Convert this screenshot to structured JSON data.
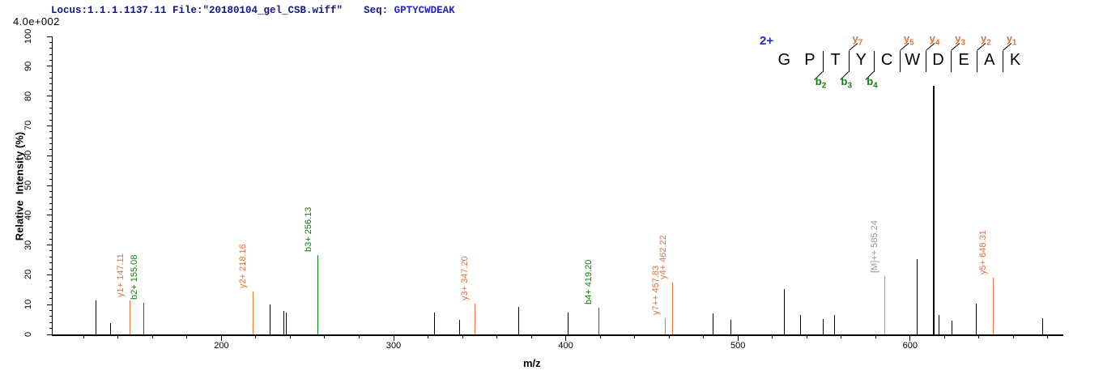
{
  "header": {
    "locus_file": "Locus:1.1.1.1137.11 File:\"20180104_gel_CSB.wiff\"",
    "seq_label": "Seq:",
    "seq_value": "GPTYCWDEAK",
    "intensity_scale": "4.0e+002"
  },
  "axes": {
    "x_label": "m/z",
    "y_label": "Relative  Intensity (%)",
    "x_major_ticks": [
      200,
      300,
      400,
      500,
      600
    ],
    "x_minor_step": 20,
    "x_range": [
      101.5,
      689
    ],
    "y_major_ticks": [
      0,
      10,
      20,
      30,
      40,
      50,
      60,
      70,
      80,
      90,
      100
    ],
    "y_minor_step": 2,
    "y_range": [
      0,
      100
    ]
  },
  "annotation": {
    "precursor_charge": "2+",
    "residues": [
      "G",
      "P",
      "T",
      "Y",
      "C",
      "W",
      "D",
      "E",
      "A",
      "K"
    ],
    "y_ions": [
      {
        "name": "y",
        "num": "7",
        "after": 2
      },
      {
        "name": "y",
        "num": "5",
        "after": 4
      },
      {
        "name": "y",
        "num": "4",
        "after": 5
      },
      {
        "name": "y",
        "num": "3",
        "after": 6
      },
      {
        "name": "y",
        "num": "2",
        "after": 7
      },
      {
        "name": "y",
        "num": "1",
        "after": 8
      }
    ],
    "b_ions": [
      {
        "name": "b",
        "num": "2",
        "after": 1
      },
      {
        "name": "b",
        "num": "3",
        "after": 2
      },
      {
        "name": "b",
        "num": "4",
        "after": 3
      }
    ]
  },
  "colors": {
    "navy": "#15158B",
    "seq_blue": "#2424CC",
    "charge_blue": "#2222E0",
    "orange": "#E0743C",
    "green": "#118011",
    "gray": "#999999",
    "black": "#000000"
  },
  "chart_data": {
    "type": "bar",
    "title": "MS/MS fragmentation spectrum of peptide GPTYCWDEAK (2+)",
    "xlabel": "m/z",
    "ylabel": "Relative Intensity (%)",
    "xlim": [
      101.5,
      689
    ],
    "ylim": [
      0,
      100
    ],
    "grid": false,
    "peaks": [
      {
        "mz": 127.0,
        "pct": 11.3,
        "color": "black"
      },
      {
        "mz": 135.8,
        "pct": 3.9,
        "color": "black"
      },
      {
        "mz": 147.11,
        "pct": 11.5,
        "color": "orange",
        "label": "y1+ 147.11"
      },
      {
        "mz": 155.08,
        "pct": 10.5,
        "color": "green",
        "label": "b2+ 155.08"
      },
      {
        "mz": 218.16,
        "pct": 14.5,
        "color": "orange",
        "label": "y2+ 218.16"
      },
      {
        "mz": 228.1,
        "pct": 10.0,
        "color": "black"
      },
      {
        "mz": 236.4,
        "pct": 8.0,
        "color": "black"
      },
      {
        "mz": 237.9,
        "pct": 7.3,
        "color": "black"
      },
      {
        "mz": 256.13,
        "pct": 26.6,
        "color": "green",
        "label": "b3+ 256.13"
      },
      {
        "mz": 323.8,
        "pct": 7.3,
        "color": "black"
      },
      {
        "mz": 338.2,
        "pct": 4.9,
        "color": "black"
      },
      {
        "mz": 347.2,
        "pct": 10.3,
        "color": "orange",
        "label": "y3+ 347.20"
      },
      {
        "mz": 372.6,
        "pct": 9.2,
        "color": "black"
      },
      {
        "mz": 401.3,
        "pct": 7.3,
        "color": "black"
      },
      {
        "mz": 419.2,
        "pct": 8.9,
        "color": "green",
        "label": "b4+ 419.20"
      },
      {
        "mz": 457.83,
        "pct": 5.5,
        "color": "orange",
        "label": "y7++ 457.83"
      },
      {
        "mz": 462.22,
        "pct": 17.5,
        "color": "orange",
        "label": "y4+ 462.22"
      },
      {
        "mz": 485.4,
        "pct": 7.1,
        "color": "black"
      },
      {
        "mz": 496.0,
        "pct": 4.8,
        "color": "black"
      },
      {
        "mz": 526.8,
        "pct": 15.2,
        "color": "black"
      },
      {
        "mz": 536.2,
        "pct": 6.6,
        "color": "black"
      },
      {
        "mz": 549.6,
        "pct": 5.1,
        "color": "black"
      },
      {
        "mz": 555.9,
        "pct": 6.4,
        "color": "black"
      },
      {
        "mz": 585.24,
        "pct": 19.5,
        "color": "gray",
        "label": "[M]++ 585.24"
      },
      {
        "mz": 604.3,
        "pct": 25.3,
        "color": "black"
      },
      {
        "mz": 613.7,
        "pct": 83.4,
        "color": "black",
        "wide": true
      },
      {
        "mz": 616.8,
        "pct": 6.6,
        "color": "black"
      },
      {
        "mz": 624.4,
        "pct": 4.6,
        "color": "black"
      },
      {
        "mz": 638.5,
        "pct": 10.3,
        "color": "black"
      },
      {
        "mz": 648.31,
        "pct": 19.0,
        "color": "orange",
        "label": "y5+ 648.31"
      },
      {
        "mz": 676.9,
        "pct": 5.3,
        "color": "black"
      }
    ]
  }
}
